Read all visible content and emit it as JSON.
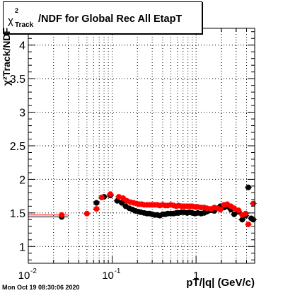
{
  "header": {
    "title_symbol": "χ",
    "title_sup": "2",
    "title_sub": "Track",
    "title_main": "/NDF for Global Rec All EtapT"
  },
  "timestamp": "Mon Oct 19 08:30:06 2020",
  "chart_data": {
    "type": "scatter",
    "title": "χ²Track/NDF for Global Rec All EtapT",
    "xlabel": "pT/|q| (GeV/c)",
    "ylabel": "χ²Track/NDF",
    "xscale": "log",
    "xlim": [
      0.01,
      5
    ],
    "ylim": [
      0.75,
      4.25
    ],
    "x_ticks": [
      {
        "value": 0.01,
        "label": "10",
        "sup": "-2"
      },
      {
        "value": 0.1,
        "label": "10",
        "sup": "-1"
      },
      {
        "value": 1,
        "label": "1",
        "sup": ""
      }
    ],
    "y_ticks": [
      {
        "value": 1,
        "label": "1"
      },
      {
        "value": 1.5,
        "label": "1.5"
      },
      {
        "value": 2,
        "label": "2"
      },
      {
        "value": 2.5,
        "label": "2.5"
      },
      {
        "value": 3,
        "label": "3"
      },
      {
        "value": 3.5,
        "label": "3.5"
      },
      {
        "value": 4,
        "label": "4"
      }
    ],
    "grid": true,
    "series": [
      {
        "color": "#000000",
        "points": [
          [
            0.025,
            1.44
          ],
          [
            0.065,
            1.65
          ],
          [
            0.08,
            1.74
          ],
          [
            0.095,
            1.76
          ],
          [
            0.115,
            1.68
          ],
          [
            0.13,
            1.65
          ],
          [
            0.145,
            1.6
          ],
          [
            0.16,
            1.57
          ],
          [
            0.175,
            1.55
          ],
          [
            0.19,
            1.53
          ],
          [
            0.205,
            1.52
          ],
          [
            0.22,
            1.51
          ],
          [
            0.24,
            1.5
          ],
          [
            0.26,
            1.49
          ],
          [
            0.28,
            1.49
          ],
          [
            0.3,
            1.48
          ],
          [
            0.32,
            1.47
          ],
          [
            0.345,
            1.47
          ],
          [
            0.37,
            1.46
          ],
          [
            0.4,
            1.48
          ],
          [
            0.43,
            1.48
          ],
          [
            0.46,
            1.49
          ],
          [
            0.5,
            1.49
          ],
          [
            0.54,
            1.49
          ],
          [
            0.58,
            1.5
          ],
          [
            0.62,
            1.5
          ],
          [
            0.67,
            1.51
          ],
          [
            0.72,
            1.51
          ],
          [
            0.78,
            1.5
          ],
          [
            0.84,
            1.51
          ],
          [
            0.9,
            1.5
          ],
          [
            0.97,
            1.49
          ],
          [
            1.05,
            1.5
          ],
          [
            1.15,
            1.49
          ],
          [
            1.25,
            1.5
          ],
          [
            1.35,
            1.52
          ],
          [
            1.5,
            1.54
          ],
          [
            1.65,
            1.53
          ],
          [
            1.8,
            1.57
          ],
          [
            1.95,
            1.6
          ],
          [
            2.15,
            1.58
          ],
          [
            2.35,
            1.6
          ],
          [
            2.6,
            1.55
          ],
          [
            2.85,
            1.48
          ],
          [
            3.2,
            1.52
          ],
          [
            3.55,
            1.4
          ],
          [
            3.9,
            1.46
          ],
          [
            4.2,
            1.88
          ],
          [
            4.55,
            1.42
          ],
          [
            4.8,
            1.4
          ]
        ]
      },
      {
        "color": "#ff0000",
        "points": [
          [
            0.025,
            1.47
          ],
          [
            0.05,
            1.49
          ],
          [
            0.065,
            1.56
          ],
          [
            0.075,
            1.73
          ],
          [
            0.095,
            1.78
          ],
          [
            0.12,
            1.74
          ],
          [
            0.135,
            1.72
          ],
          [
            0.15,
            1.68
          ],
          [
            0.165,
            1.66
          ],
          [
            0.18,
            1.65
          ],
          [
            0.195,
            1.64
          ],
          [
            0.21,
            1.63
          ],
          [
            0.225,
            1.63
          ],
          [
            0.24,
            1.62
          ],
          [
            0.26,
            1.62
          ],
          [
            0.28,
            1.62
          ],
          [
            0.3,
            1.62
          ],
          [
            0.32,
            1.62
          ],
          [
            0.345,
            1.62
          ],
          [
            0.37,
            1.61
          ],
          [
            0.4,
            1.62
          ],
          [
            0.43,
            1.61
          ],
          [
            0.46,
            1.61
          ],
          [
            0.5,
            1.62
          ],
          [
            0.54,
            1.61
          ],
          [
            0.58,
            1.6
          ],
          [
            0.62,
            1.61
          ],
          [
            0.67,
            1.6
          ],
          [
            0.72,
            1.6
          ],
          [
            0.78,
            1.6
          ],
          [
            0.84,
            1.6
          ],
          [
            0.9,
            1.6
          ],
          [
            0.97,
            1.59
          ],
          [
            1.05,
            1.59
          ],
          [
            1.15,
            1.58
          ],
          [
            1.25,
            1.58
          ],
          [
            1.35,
            1.57
          ],
          [
            1.5,
            1.56
          ],
          [
            1.65,
            1.58
          ],
          [
            1.8,
            1.57
          ],
          [
            1.95,
            1.55
          ],
          [
            2.15,
            1.62
          ],
          [
            2.35,
            1.63
          ],
          [
            2.6,
            1.6
          ],
          [
            2.85,
            1.57
          ],
          [
            3.2,
            1.54
          ],
          [
            3.55,
            1.47
          ],
          [
            3.9,
            1.49
          ],
          [
            4.2,
            1.33
          ],
          [
            4.8,
            1.64
          ]
        ]
      }
    ],
    "reference_lines": [
      {
        "color": "#000000",
        "value": 1.44,
        "x_from": 0.01,
        "x_to": 0.03
      },
      {
        "color": "#ff0000",
        "value": 1.47,
        "x_from": 0.01,
        "x_to": 0.03
      }
    ]
  }
}
